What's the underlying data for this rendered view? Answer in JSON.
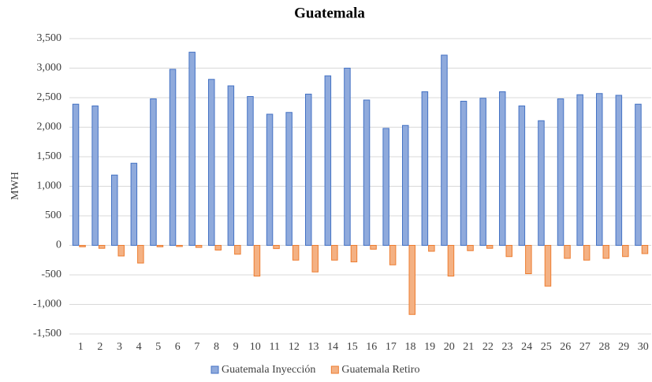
{
  "chart_data": {
    "type": "bar",
    "title": "Guatemala",
    "y_label": "MWH",
    "categories": [
      "1",
      "2",
      "3",
      "4",
      "5",
      "6",
      "7",
      "8",
      "9",
      "10",
      "11",
      "12",
      "13",
      "14",
      "15",
      "16",
      "17",
      "18",
      "19",
      "20",
      "21",
      "22",
      "23",
      "24",
      "25",
      "26",
      "27",
      "28",
      "29",
      "30"
    ],
    "series": [
      {
        "name": "Guatemala Inyección",
        "color": "#8faadc",
        "edgecolor": "#4472c4",
        "values": [
          2390,
          2360,
          1190,
          1390,
          2480,
          2980,
          3270,
          2810,
          2700,
          2520,
          2220,
          2250,
          2560,
          2870,
          3000,
          2460,
          1980,
          2030,
          2600,
          3220,
          2440,
          2490,
          2600,
          2360,
          2110,
          2480,
          2550,
          2570,
          2540,
          2390
        ]
      },
      {
        "name": "Guatemala Retiro",
        "color": "#f4b183",
        "edgecolor": "#ed7d31",
        "values": [
          -25,
          -50,
          -180,
          -300,
          -25,
          -20,
          -35,
          -80,
          -150,
          -520,
          -55,
          -250,
          -450,
          -250,
          -280,
          -65,
          -330,
          -1170,
          -100,
          -520,
          -90,
          -50,
          -190,
          -480,
          -690,
          -220,
          -250,
          -220,
          -190,
          -140
        ]
      }
    ],
    "ylim": [
      -1500,
      3500
    ],
    "yticks": [
      {
        "value": -1500,
        "label": "-1,500"
      },
      {
        "value": -1000,
        "label": "-1,000"
      },
      -500,
      0,
      500,
      {
        "value": 1000,
        "label": "1,000"
      },
      {
        "value": 1500,
        "label": "1,500"
      },
      {
        "value": 2000,
        "label": "2,000"
      },
      {
        "value": 2500,
        "label": "2,500"
      },
      {
        "value": 3000,
        "label": "3,000"
      },
      {
        "value": 3500,
        "label": "3,500"
      }
    ],
    "grid": true,
    "legend": "bottom"
  }
}
